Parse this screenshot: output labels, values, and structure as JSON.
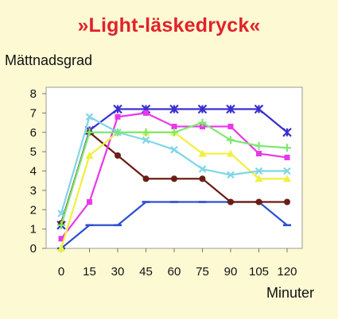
{
  "chart_data": {
    "type": "line",
    "title": "»Light-läskedryck«",
    "ylabel": "Mättnadsgrad",
    "xlabel": "Minuter",
    "x": [
      0,
      15,
      30,
      45,
      60,
      75,
      90,
      105,
      120
    ],
    "xlim": [
      0,
      120
    ],
    "ylim": [
      0,
      8
    ],
    "yticks": [
      0,
      1,
      2,
      3,
      4,
      5,
      6,
      7,
      8
    ],
    "grid": false,
    "series": [
      {
        "color": "#2d50d0",
        "marker": "dash",
        "values": [
          0,
          1.2,
          1.2,
          2.4,
          2.4,
          2.4,
          2.4,
          2.4,
          1.2
        ]
      },
      {
        "color": "#3a2fd0",
        "marker": "asterisk",
        "values": [
          1.2,
          6.1,
          7.2,
          7.2,
          7.2,
          7.2,
          7.2,
          7.2,
          6.0
        ]
      },
      {
        "color": "#6a1e14",
        "marker": "circle",
        "values": [
          1.3,
          6.0,
          4.8,
          3.6,
          3.6,
          3.6,
          2.4,
          2.4,
          2.4
        ]
      },
      {
        "color": "#e838e8",
        "marker": "square",
        "values": [
          0.5,
          2.4,
          6.8,
          7.0,
          6.3,
          6.3,
          6.3,
          4.9,
          4.7
        ]
      },
      {
        "color": "#f0f040",
        "marker": "triangle",
        "values": [
          0,
          4.8,
          6.0,
          6.0,
          6.0,
          4.9,
          4.9,
          3.6,
          3.6
        ]
      },
      {
        "color": "#7fd6e6",
        "marker": "x",
        "values": [
          1.8,
          6.8,
          6.0,
          5.6,
          5.1,
          4.1,
          3.8,
          4.0,
          4.0
        ]
      },
      {
        "color": "#7ee870",
        "marker": "plus",
        "values": [
          1.2,
          6.0,
          6.0,
          6.0,
          6.0,
          6.5,
          5.6,
          5.3,
          5.2
        ]
      }
    ]
  }
}
